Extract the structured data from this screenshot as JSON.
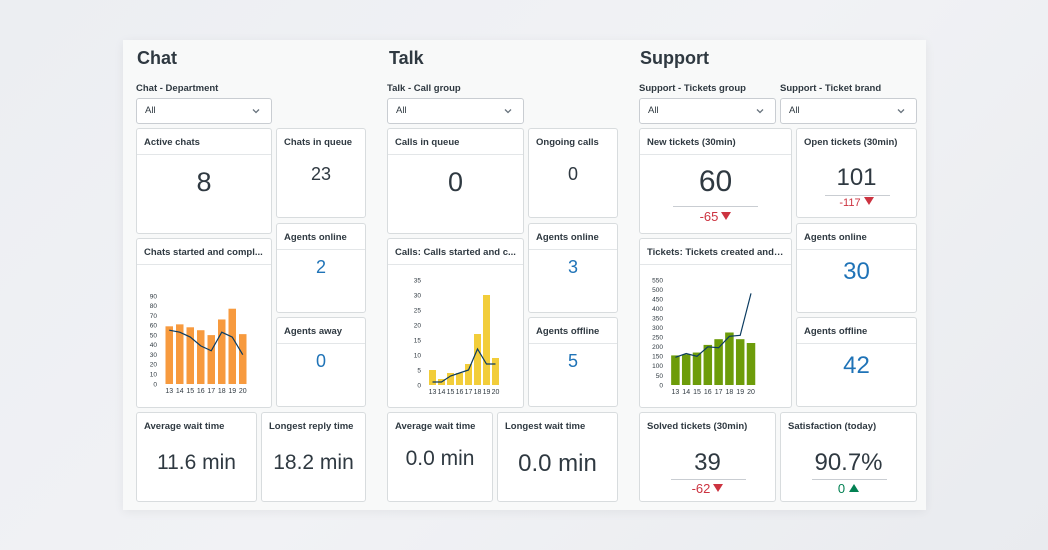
{
  "chat": {
    "title": "Chat",
    "filter_label": "Chat - Department",
    "filter_value": "All",
    "active_chats": {
      "label": "Active chats",
      "value": "8"
    },
    "chats_in_queue": {
      "label": "Chats in queue",
      "value": "23"
    },
    "agents_online": {
      "label": "Agents online",
      "value": "2"
    },
    "agents_away": {
      "label": "Agents away",
      "value": "0"
    },
    "chart_title": "Chats started and compl...",
    "avg_wait": {
      "label": "Average wait time",
      "value": "11.6 min"
    },
    "longest_reply": {
      "label": "Longest reply time",
      "value": "18.2 min"
    }
  },
  "talk": {
    "title": "Talk",
    "filter_label": "Talk - Call group",
    "filter_value": "All",
    "calls_in_queue": {
      "label": "Calls in queue",
      "value": "0"
    },
    "ongoing_calls": {
      "label": "Ongoing calls",
      "value": "0"
    },
    "agents_online": {
      "label": "Agents online",
      "value": "3"
    },
    "agents_offline": {
      "label": "Agents offline",
      "value": "5"
    },
    "chart_title": "Calls: Calls started and c...",
    "avg_wait": {
      "label": "Average wait time",
      "value": "0.0 min"
    },
    "longest_wait": {
      "label": "Longest wait time",
      "value": "0.0 min"
    }
  },
  "support": {
    "title": "Support",
    "filter1_label": "Support - Tickets group",
    "filter1_value": "All",
    "filter2_label": "Support - Ticket brand",
    "filter2_value": "All",
    "new_tickets": {
      "label": "New tickets (30min)",
      "value": "60",
      "delta": "-65"
    },
    "open_tickets": {
      "label": "Open tickets (30min)",
      "value": "101",
      "delta": "-117"
    },
    "agents_online": {
      "label": "Agents online",
      "value": "30"
    },
    "agents_offline": {
      "label": "Agents offline",
      "value": "42"
    },
    "chart_title": "Tickets: Tickets created and ...",
    "solved_tickets": {
      "label": "Solved tickets (30min)",
      "value": "39",
      "delta": "-62"
    },
    "satisfaction": {
      "label": "Satisfaction (today)",
      "value": "90.7%",
      "delta": "0"
    }
  },
  "colors": {
    "chat_bar": "#f79a3e",
    "talk_bar": "#f2cd3a",
    "support_bar": "#6d9c0a",
    "line": "#0b3b60",
    "metric_blue": "#1f73b7",
    "delta_red": "#cc3340",
    "delta_green": "#038153"
  },
  "chart_data": [
    {
      "type": "bar",
      "categories": [
        "13",
        "14",
        "15",
        "16",
        "17",
        "18",
        "19",
        "20"
      ],
      "series": [
        {
          "values": [
            59,
            61,
            58,
            55,
            50,
            66,
            77,
            51
          ]
        },
        {
          "type": "line",
          "values": [
            55,
            53,
            48,
            39,
            34,
            53,
            48,
            30
          ]
        }
      ],
      "yticks": [
        0,
        10,
        20,
        30,
        40,
        50,
        60,
        70,
        80,
        90
      ],
      "ylim": [
        0,
        90
      ]
    },
    {
      "type": "bar",
      "categories": [
        "13",
        "14",
        "15",
        "16",
        "17",
        "18",
        "19",
        "20"
      ],
      "series": [
        {
          "values": [
            5,
            2,
            4,
            4,
            7,
            17,
            30,
            9
          ]
        },
        {
          "type": "line",
          "values": [
            1,
            1,
            3,
            4,
            5,
            12,
            7,
            7
          ]
        }
      ],
      "yticks": [
        0,
        5,
        10,
        15,
        20,
        25,
        30,
        35
      ],
      "ylim": [
        0,
        35
      ]
    },
    {
      "type": "bar",
      "categories": [
        "13",
        "14",
        "15",
        "16",
        "17",
        "18",
        "19",
        "20"
      ],
      "series": [
        {
          "values": [
            155,
            160,
            170,
            210,
            240,
            275,
            240,
            220
          ]
        },
        {
          "type": "line",
          "values": [
            145,
            165,
            150,
            200,
            195,
            255,
            260,
            480
          ]
        }
      ],
      "yticks": [
        0,
        50,
        100,
        150,
        200,
        250,
        300,
        350,
        400,
        450,
        500,
        550
      ],
      "ylim": [
        0,
        550
      ]
    }
  ]
}
